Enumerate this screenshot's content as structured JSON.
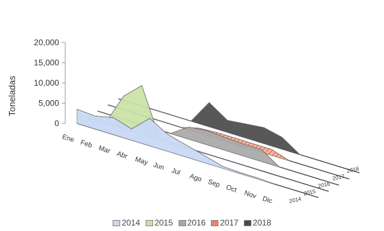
{
  "chart_data": {
    "type": "area",
    "categories": [
      "Ene",
      "Feb",
      "Mar",
      "Abr",
      "May",
      "Jun",
      "Jul",
      "Ago",
      "Sep",
      "Oct",
      "Nov",
      "Dic"
    ],
    "ylabel": "Toneladas",
    "ylim": [
      0,
      20000
    ],
    "yticks": [
      "0",
      "5,000",
      "10,000",
      "15,000",
      "20,000"
    ],
    "legend_position": "bottom",
    "series": [
      {
        "name": "2014",
        "color": "#c8d8f4",
        "values": [
          3500,
          3200,
          4200,
          2800,
          6800,
          4200,
          3000,
          1800,
          500,
          300,
          300,
          0
        ]
      },
      {
        "name": "2015",
        "color": "#c9e2a6",
        "values": [
          0,
          0,
          8000,
          12000,
          0,
          0,
          0,
          0,
          0,
          0,
          0,
          0
        ]
      },
      {
        "name": "2016",
        "color": "#a8a8a8",
        "values": [
          0,
          0,
          0,
          0,
          0,
          3000,
          3500,
          3200,
          3000,
          3000,
          0,
          0
        ]
      },
      {
        "name": "2017",
        "color": "#f08060",
        "values": [
          0,
          0,
          0,
          0,
          0,
          1200,
          1500,
          1500,
          1500,
          1500,
          0,
          0
        ]
      },
      {
        "name": "2018",
        "color": "#4a4a4a",
        "values": [
          0,
          0,
          0,
          0,
          0,
          6000,
          3000,
          3500,
          4000,
          3000,
          0,
          0
        ]
      }
    ]
  }
}
